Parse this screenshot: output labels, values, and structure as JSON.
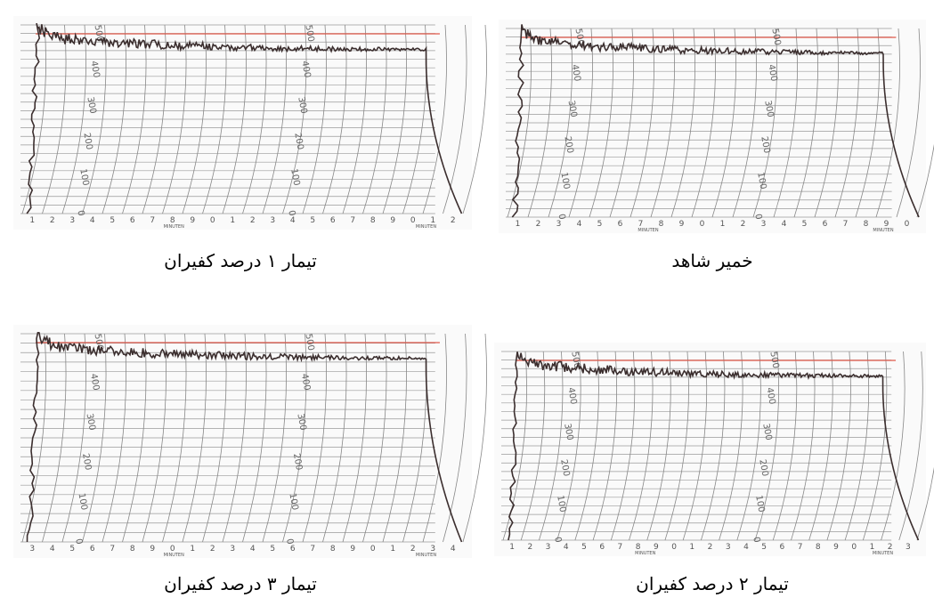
{
  "panels": [
    {
      "caption": "تیمار ۱ درصد کفیران",
      "y_labels": [
        "500",
        "400",
        "300",
        "200",
        "100",
        "0"
      ],
      "x_labels": [
        "1",
        "2",
        "3",
        "4",
        "5",
        "6",
        "7",
        "8",
        "9",
        "0",
        "1",
        "2",
        "3",
        "4",
        "5",
        "6",
        "7",
        "8",
        "9",
        "0",
        "1",
        "2"
      ],
      "x_unit": "MINUTEN"
    },
    {
      "caption": "خمیر شاهد",
      "y_labels": [
        "500",
        "400",
        "300",
        "200",
        "100",
        "0"
      ],
      "x_labels": [
        "1",
        "2",
        "3",
        "4",
        "5",
        "6",
        "7",
        "8",
        "9",
        "0",
        "1",
        "2",
        "3",
        "4",
        "5",
        "6",
        "7",
        "8",
        "9",
        "0"
      ],
      "x_unit": "MINUTEN"
    },
    {
      "caption": "تیمار ۳ درصد کفیران",
      "y_labels": [
        "500",
        "400",
        "300",
        "200",
        "100",
        "0"
      ],
      "x_labels": [
        "3",
        "4",
        "5",
        "6",
        "7",
        "8",
        "9",
        "0",
        "1",
        "2",
        "3",
        "4",
        "5",
        "6",
        "7",
        "8",
        "9",
        "0",
        "1",
        "2",
        "3",
        "4"
      ],
      "x_unit": "MINUTEN"
    },
    {
      "caption": "تیمار ۲ درصد کفیران",
      "y_labels": [
        "500",
        "400",
        "300",
        "200",
        "100",
        "0"
      ],
      "x_labels": [
        "1",
        "2",
        "3",
        "4",
        "5",
        "6",
        "7",
        "8",
        "9",
        "0",
        "1",
        "2",
        "3",
        "4",
        "5",
        "6",
        "7",
        "8",
        "9",
        "0",
        "1",
        "2",
        "3"
      ],
      "x_unit": "MINUTEN"
    }
  ]
}
